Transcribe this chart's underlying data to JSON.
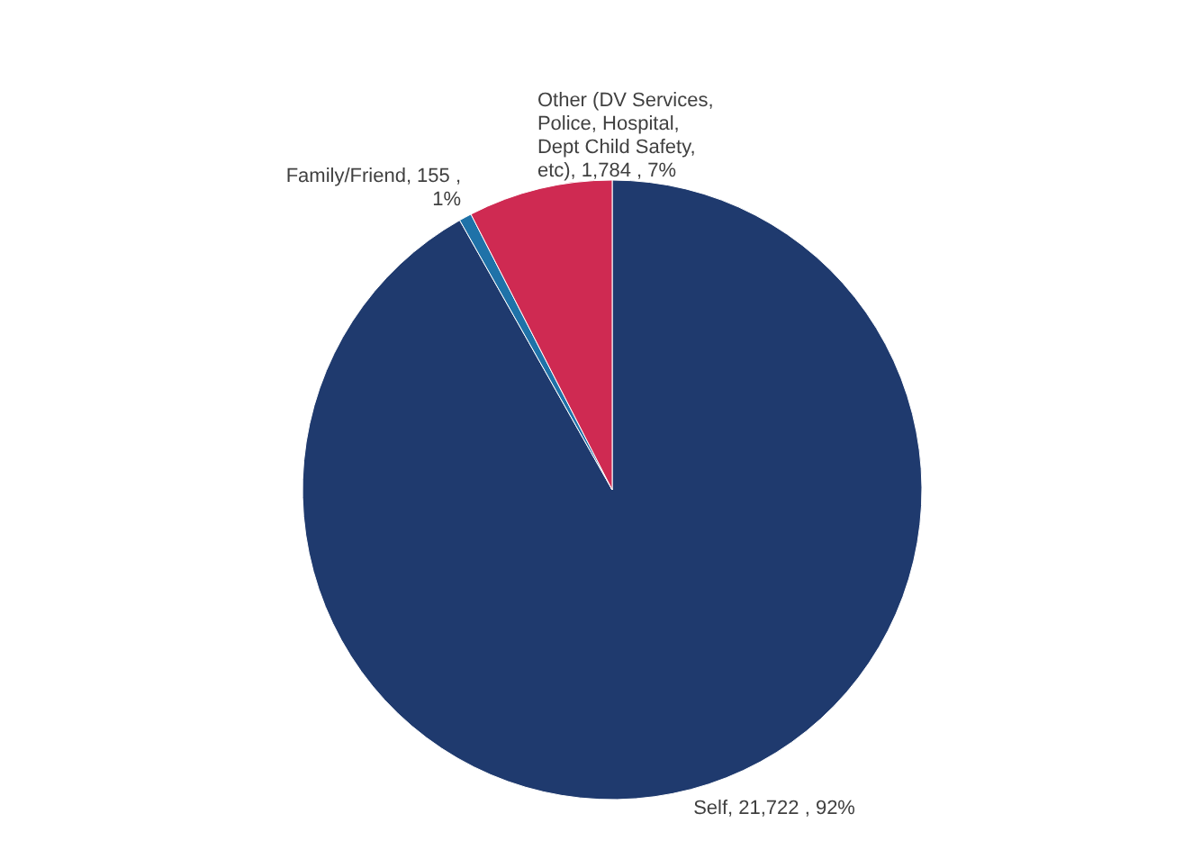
{
  "chart_data": {
    "type": "pie",
    "categories": [
      "Self",
      "Family/Friend",
      "Other (DV Services, Police, Hospital, Dept Child Safety, etc)"
    ],
    "values": [
      21722,
      155,
      1784
    ],
    "colors": [
      "#1f3a6e",
      "#1f72a8",
      "#cf2a52"
    ],
    "value_labels": [
      ", 21,722 , 92%",
      ", 155 , 1%",
      ", 1,784 , 7%"
    ]
  }
}
